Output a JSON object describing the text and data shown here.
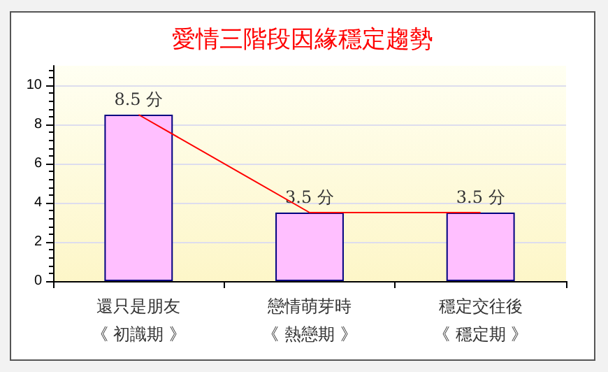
{
  "chart_data": {
    "type": "bar",
    "title": "愛情三階段因緣穩定趨勢",
    "categories": [
      "還只是朋友《 初識期 》",
      "戀情萌芽時《 熱戀期 》",
      "穩定交往後《 穩定期 》"
    ],
    "series": [
      {
        "color": "#ffbfff",
        "values": [
          8.5,
          3.5,
          3.5
        ],
        "value_labels": [
          "8.5 分",
          "3.5 分",
          "3.5 分"
        ]
      },
      {
        "type": "line",
        "color": "#ff0000",
        "values": [
          8.5,
          3.5,
          3.5
        ],
        "marker": "none"
      }
    ],
    "ylim": [
      0,
      11
    ],
    "yticks": [
      0,
      2,
      4,
      6,
      8,
      10
    ],
    "grid": "y"
  }
}
